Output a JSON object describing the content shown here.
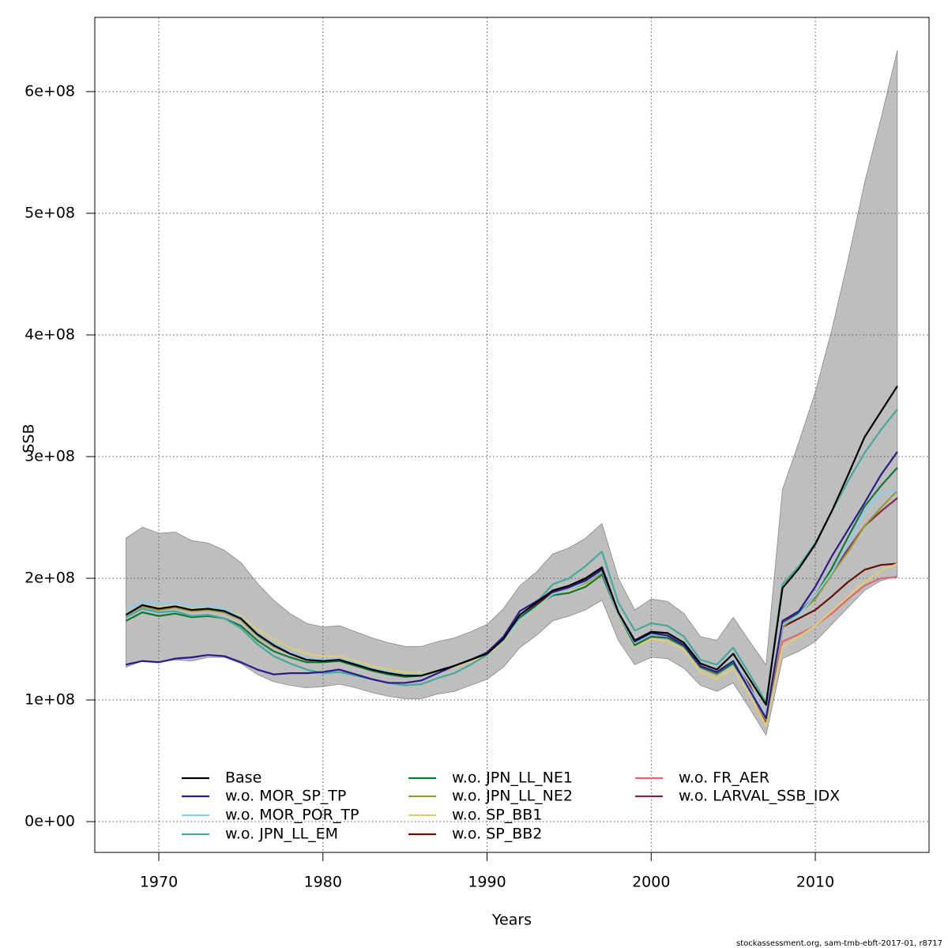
{
  "chart_data": {
    "type": "line",
    "x_label": "Years",
    "y_label": "SSB",
    "footer": "stockassessment.org, sam-tmb-ebft-2017-01, r8717",
    "xlim": [
      1966.1,
      2016.93
    ],
    "ylim": [
      -25300000.0,
      661000000.0
    ],
    "xticks": [
      1970,
      1980,
      1990,
      2000,
      2010
    ],
    "yticks": [
      {
        "value": 0,
        "label": "0e+00"
      },
      {
        "value": 100000000.0,
        "label": "1e+08"
      },
      {
        "value": 200000000.0,
        "label": "2e+08"
      },
      {
        "value": 300000000.0,
        "label": "3e+08"
      },
      {
        "value": 400000000.0,
        "label": "4e+08"
      },
      {
        "value": 500000000.0,
        "label": "5e+08"
      },
      {
        "value": 600000000.0,
        "label": "6e+08"
      }
    ],
    "grid": true,
    "legend": "bottom",
    "x": [
      1968,
      1969,
      1970,
      1971,
      1972,
      1973,
      1974,
      1975,
      1976,
      1977,
      1978,
      1979,
      1980,
      1981,
      1982,
      1983,
      1984,
      1985,
      1986,
      1987,
      1988,
      1989,
      1990,
      1991,
      1992,
      1993,
      1994,
      1995,
      1996,
      1997,
      1998,
      1999,
      2000,
      2001,
      2002,
      2003,
      2004,
      2005,
      2006,
      2007,
      2008,
      2009,
      2010,
      2011,
      2012,
      2013,
      2014,
      2015
    ],
    "band": {
      "color": "#bebebe",
      "upper": [
        233000000.0,
        242000000.0,
        237000000.0,
        238000000.0,
        231000000.0,
        229000000.0,
        223000000.0,
        213000000.0,
        196000000.0,
        182000000.0,
        171000000.0,
        163000000.0,
        160000000.0,
        161000000.0,
        156000000.0,
        151000000.0,
        147000000.0,
        144000000.0,
        144000000.0,
        148000000.0,
        151000000.0,
        156000000.0,
        162000000.0,
        175000000.0,
        194000000.0,
        205000000.0,
        220000000.0,
        225000000.0,
        233000000.0,
        245000000.0,
        200000000.0,
        174000000.0,
        183000000.0,
        181000000.0,
        171000000.0,
        152000000.0,
        149000000.0,
        168000000.0,
        148000000.0,
        129000000.0,
        273000000.0,
        312000000.0,
        353000000.0,
        404000000.0,
        462000000.0,
        525000000.0,
        578000000.0,
        634000000.0
      ],
      "lower": [
        127000000.0,
        132000000.0,
        131000000.0,
        133000000.0,
        132000000.0,
        135000000.0,
        135000000.0,
        130000000.0,
        121000000.0,
        115000000.0,
        112000000.0,
        110000000.0,
        111000000.0,
        113000000.0,
        110000000.0,
        106000000.0,
        103000000.0,
        101000000.0,
        101000000.0,
        105000000.0,
        107000000.0,
        112000000.0,
        117000000.0,
        127000000.0,
        143000000.0,
        153000000.0,
        165000000.0,
        169000000.0,
        174000000.0,
        182000000.0,
        149000000.0,
        129000000.0,
        135000000.0,
        134000000.0,
        126000000.0,
        112000000.0,
        107000000.0,
        114000000.0,
        93000000.0,
        71000000.0,
        134000000.0,
        140000000.0,
        148000000.0,
        162000000.0,
        176000000.0,
        190000000.0,
        198000000.0,
        202000000.0
      ]
    },
    "series": [
      {
        "name": "Base",
        "color": "#000000",
        "values": [
          170000000.0,
          178000000.0,
          175000000.0,
          177000000.0,
          174000000.0,
          175000000.0,
          173000000.0,
          167000000.0,
          154000000.0,
          145000000.0,
          138000000.0,
          133000000.0,
          132000000.0,
          133000000.0,
          129000000.0,
          125000000.0,
          122000000.0,
          120000000.0,
          120000000.0,
          124000000.0,
          128000000.0,
          133000000.0,
          138000000.0,
          150000000.0,
          170000000.0,
          180000000.0,
          190000000.0,
          194000000.0,
          200000000.0,
          209000000.0,
          172000000.0,
          149000000.0,
          156000000.0,
          155000000.0,
          147000000.0,
          130000000.0,
          125000000.0,
          138000000.0,
          117000000.0,
          96000000.0,
          192000000.0,
          208000000.0,
          228000000.0,
          255000000.0,
          285000000.0,
          316000000.0,
          337000000.0,
          358000000.0
        ]
      },
      {
        "name": "w.o. MOR_SP_TP",
        "color": "#2a1a8a",
        "values": [
          129000000.0,
          132000000.0,
          131000000.0,
          134000000.0,
          135000000.0,
          137000000.0,
          136000000.0,
          131000000.0,
          125000000.0,
          121000000.0,
          122000000.0,
          122000000.0,
          123000000.0,
          125000000.0,
          121000000.0,
          117000000.0,
          114000000.0,
          114000000.0,
          116000000.0,
          122000000.0,
          128000000.0,
          133000000.0,
          139000000.0,
          152000000.0,
          173000000.0,
          181000000.0,
          189000000.0,
          193000000.0,
          198000000.0,
          207000000.0,
          172000000.0,
          148000000.0,
          155000000.0,
          153000000.0,
          145000000.0,
          128000000.0,
          123000000.0,
          132000000.0,
          108000000.0,
          85000000.0,
          165000000.0,
          173000000.0,
          193000000.0,
          218000000.0,
          240000000.0,
          262000000.0,
          285000000.0,
          304000000.0
        ]
      },
      {
        "name": "w.o. MOR_POR_TP",
        "color": "#88ccee",
        "values": [
          174000000.0,
          181000000.0,
          179000000.0,
          180000000.0,
          177000000.0,
          177000000.0,
          175000000.0,
          168000000.0,
          155000000.0,
          146000000.0,
          139000000.0,
          134000000.0,
          133000000.0,
          134000000.0,
          130000000.0,
          126000000.0,
          123000000.0,
          121000000.0,
          121000000.0,
          124000000.0,
          128000000.0,
          133000000.0,
          138000000.0,
          149000000.0,
          166000000.0,
          176000000.0,
          187000000.0,
          191000000.0,
          197000000.0,
          206000000.0,
          170000000.0,
          147000000.0,
          154000000.0,
          153000000.0,
          145000000.0,
          128000000.0,
          123000000.0,
          133000000.0,
          110000000.0,
          87000000.0,
          162000000.0,
          170000000.0,
          186000000.0,
          205000000.0,
          228000000.0,
          255000000.0,
          270000000.0,
          272000000.0
        ]
      },
      {
        "name": "w.o. JPN_LL_EM",
        "color": "#44aa99",
        "values": [
          168000000.0,
          175000000.0,
          172000000.0,
          173000000.0,
          169000000.0,
          170000000.0,
          167000000.0,
          159000000.0,
          146000000.0,
          136000000.0,
          130000000.0,
          125000000.0,
          122000000.0,
          123000000.0,
          120000000.0,
          117000000.0,
          114000000.0,
          112000000.0,
          113000000.0,
          118000000.0,
          122000000.0,
          129000000.0,
          137000000.0,
          152000000.0,
          169000000.0,
          180000000.0,
          195000000.0,
          200000000.0,
          210000000.0,
          222000000.0,
          180000000.0,
          157000000.0,
          163000000.0,
          161000000.0,
          152000000.0,
          133000000.0,
          129000000.0,
          143000000.0,
          121000000.0,
          98000000.0,
          195000000.0,
          210000000.0,
          229000000.0,
          255000000.0,
          280000000.0,
          303000000.0,
          322000000.0,
          339000000.0
        ]
      },
      {
        "name": "w.o. JPN_LL_NE1",
        "color": "#117733",
        "values": [
          165000000.0,
          172000000.0,
          169000000.0,
          171000000.0,
          168000000.0,
          169000000.0,
          167000000.0,
          161000000.0,
          149000000.0,
          140000000.0,
          135000000.0,
          131000000.0,
          131000000.0,
          132000000.0,
          128000000.0,
          124000000.0,
          121000000.0,
          119000000.0,
          120000000.0,
          124000000.0,
          128000000.0,
          133000000.0,
          139000000.0,
          151000000.0,
          167000000.0,
          177000000.0,
          186000000.0,
          188000000.0,
          193000000.0,
          203000000.0,
          170000000.0,
          145000000.0,
          152000000.0,
          151000000.0,
          144000000.0,
          127000000.0,
          122000000.0,
          130000000.0,
          109000000.0,
          86000000.0,
          162000000.0,
          171000000.0,
          186000000.0,
          208000000.0,
          234000000.0,
          259000000.0,
          276000000.0,
          291000000.0
        ]
      },
      {
        "name": "w.o. JPN_LL_NE2",
        "color": "#999933",
        "values": [
          170000000.0,
          177000000.0,
          174000000.0,
          176000000.0,
          173000000.0,
          174000000.0,
          172000000.0,
          166000000.0,
          153000000.0,
          144000000.0,
          138000000.0,
          133000000.0,
          132000000.0,
          133000000.0,
          129000000.0,
          125000000.0,
          122000000.0,
          120000000.0,
          120000000.0,
          124000000.0,
          128000000.0,
          133000000.0,
          138000000.0,
          149000000.0,
          166000000.0,
          176000000.0,
          187000000.0,
          191000000.0,
          196000000.0,
          205000000.0,
          170000000.0,
          145000000.0,
          152000000.0,
          151000000.0,
          144000000.0,
          127000000.0,
          121000000.0,
          131000000.0,
          109000000.0,
          83000000.0,
          160000000.0,
          171000000.0,
          183000000.0,
          203000000.0,
          222000000.0,
          243000000.0,
          258000000.0,
          272000000.0
        ]
      },
      {
        "name": "w.o. SP_BB1",
        "color": "#ddcc77",
        "values": [
          171000000.0,
          178000000.0,
          176000000.0,
          178000000.0,
          175000000.0,
          176000000.0,
          175000000.0,
          169000000.0,
          158000000.0,
          150000000.0,
          143000000.0,
          138000000.0,
          136000000.0,
          136000000.0,
          132000000.0,
          128000000.0,
          125000000.0,
          123000000.0,
          122000000.0,
          124000000.0,
          127000000.0,
          132000000.0,
          137000000.0,
          148000000.0,
          165000000.0,
          175000000.0,
          186000000.0,
          190000000.0,
          195000000.0,
          204000000.0,
          168000000.0,
          144000000.0,
          150000000.0,
          148000000.0,
          141000000.0,
          123000000.0,
          117000000.0,
          126000000.0,
          104000000.0,
          79000000.0,
          144000000.0,
          152000000.0,
          161000000.0,
          173000000.0,
          185000000.0,
          197000000.0,
          206000000.0,
          212000000.0
        ]
      },
      {
        "name": "w.o. SP_BB2",
        "color": "#661100",
        "values": [
          170000000.0,
          178000000.0,
          175000000.0,
          177000000.0,
          174000000.0,
          175000000.0,
          173000000.0,
          167000000.0,
          154000000.0,
          145000000.0,
          138000000.0,
          133000000.0,
          132000000.0,
          133000000.0,
          129000000.0,
          125000000.0,
          122000000.0,
          120000000.0,
          120000000.0,
          124000000.0,
          128000000.0,
          133000000.0,
          138000000.0,
          150000000.0,
          168000000.0,
          178000000.0,
          189000000.0,
          193000000.0,
          199000000.0,
          208000000.0,
          171000000.0,
          147000000.0,
          154000000.0,
          153000000.0,
          145000000.0,
          127000000.0,
          121000000.0,
          131000000.0,
          112000000.0,
          82000000.0,
          160000000.0,
          167000000.0,
          174000000.0,
          185000000.0,
          197000000.0,
          207000000.0,
          211000000.0,
          212000000.0
        ]
      },
      {
        "name": "w.o. FR_AER",
        "color": "#dd6677",
        "values": [
          170000000.0,
          177000000.0,
          174000000.0,
          176000000.0,
          173000000.0,
          174000000.0,
          172000000.0,
          166000000.0,
          153000000.0,
          144000000.0,
          138000000.0,
          133000000.0,
          132000000.0,
          133000000.0,
          129000000.0,
          125000000.0,
          122000000.0,
          120000000.0,
          120000000.0,
          124000000.0,
          128000000.0,
          133000000.0,
          138000000.0,
          150000000.0,
          168000000.0,
          178000000.0,
          189000000.0,
          193000000.0,
          199000000.0,
          208000000.0,
          171000000.0,
          147000000.0,
          154000000.0,
          153000000.0,
          145000000.0,
          127000000.0,
          121000000.0,
          130000000.0,
          110000000.0,
          80000000.0,
          148000000.0,
          154000000.0,
          161000000.0,
          171000000.0,
          183000000.0,
          194000000.0,
          200000000.0,
          201000000.0
        ]
      },
      {
        "name": "w.o. LARVAL_SSB_IDX",
        "color": "#882255",
        "values": [
          170000000.0,
          177000000.0,
          174000000.0,
          176000000.0,
          173000000.0,
          174000000.0,
          172000000.0,
          166000000.0,
          153000000.0,
          144000000.0,
          138000000.0,
          133000000.0,
          132000000.0,
          133000000.0,
          129000000.0,
          125000000.0,
          122000000.0,
          120000000.0,
          120000000.0,
          124000000.0,
          128000000.0,
          133000000.0,
          138000000.0,
          150000000.0,
          166000000.0,
          176000000.0,
          188000000.0,
          192000000.0,
          198000000.0,
          207000000.0,
          170000000.0,
          147000000.0,
          154000000.0,
          153000000.0,
          145000000.0,
          127000000.0,
          122000000.0,
          131000000.0,
          110000000.0,
          84000000.0,
          163000000.0,
          172000000.0,
          185000000.0,
          204000000.0,
          224000000.0,
          243000000.0,
          255000000.0,
          266000000.0
        ]
      }
    ]
  }
}
